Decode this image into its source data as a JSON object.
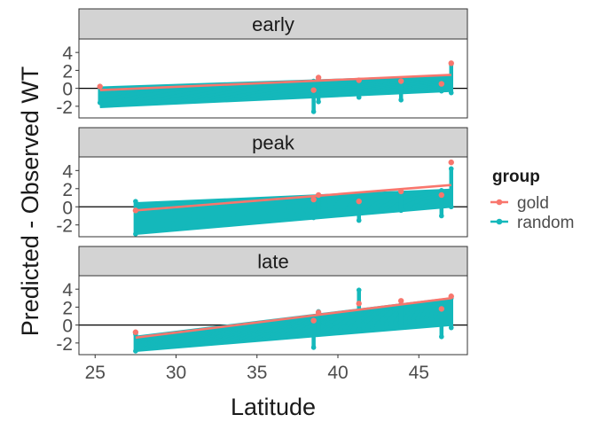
{
  "chart_data": {
    "type": "line",
    "ylabel": "Predicted - Observed WT",
    "xlabel": "Latitude",
    "x_ticks": [
      25,
      30,
      35,
      40,
      45
    ],
    "xlim": [
      24.0,
      48.0
    ],
    "legend": {
      "title": "group",
      "position": "right",
      "entries": [
        {
          "name": "gold",
          "color": "#F8766D"
        },
        {
          "name": "random",
          "color": "#14B8BB"
        }
      ]
    },
    "colors": {
      "gold": "#F8766D",
      "random": "#14B8BB",
      "strip": "#D3D3D3",
      "zero_line": "#000000"
    },
    "panels": [
      {
        "label": "early",
        "ylim": [
          -3.3,
          5.5
        ],
        "y_ticks": [
          -2,
          0,
          2,
          4
        ],
        "y_tick_labels": [
          "-2",
          "0",
          "2",
          "4"
        ],
        "gold_line": {
          "x": [
            25.3,
            47.0
          ],
          "y": [
            -0.2,
            1.5
          ]
        },
        "random_lines": {
          "x_start": 25.3,
          "x_end": 47.0,
          "y_start_range": [
            -2.1,
            0.1
          ],
          "y_end_range": [
            -0.3,
            1.4
          ],
          "count": 28
        },
        "random_points": [
          {
            "x": 25.3,
            "ymin": -1.6,
            "ymax": 0.2
          },
          {
            "x": 38.5,
            "ymin": -2.6,
            "ymax": 0.8
          },
          {
            "x": 38.8,
            "ymin": -1.5,
            "ymax": 1.0
          },
          {
            "x": 41.3,
            "ymin": -1.0,
            "ymax": 0.7
          },
          {
            "x": 43.9,
            "ymin": -1.3,
            "ymax": 0.8
          },
          {
            "x": 46.4,
            "ymin": -0.3,
            "ymax": 1.1
          },
          {
            "x": 47.0,
            "ymin": -0.5,
            "ymax": 2.7
          }
        ],
        "gold_points": [
          {
            "x": 25.3,
            "y": 0.2
          },
          {
            "x": 38.5,
            "y": -0.2
          },
          {
            "x": 38.8,
            "y": 1.2
          },
          {
            "x": 41.3,
            "y": 0.9
          },
          {
            "x": 43.9,
            "y": 0.8
          },
          {
            "x": 46.4,
            "y": 0.5
          },
          {
            "x": 47.0,
            "y": 2.8
          }
        ]
      },
      {
        "label": "peak",
        "ylim": [
          -3.3,
          5.5
        ],
        "y_ticks": [
          -2,
          0,
          2,
          4
        ],
        "y_tick_labels": [
          "-2",
          "0",
          "2",
          "4"
        ],
        "gold_line": {
          "x": [
            27.5,
            47.0
          ],
          "y": [
            -0.4,
            2.4
          ]
        },
        "random_lines": {
          "x_start": 27.5,
          "x_end": 47.0,
          "y_start_range": [
            -3.0,
            0.4
          ],
          "y_end_range": [
            0.0,
            1.9
          ],
          "count": 26
        },
        "random_points": [
          {
            "x": 27.5,
            "ymin": -3.0,
            "ymax": 0.6
          },
          {
            "x": 38.5,
            "ymin": -1.2,
            "ymax": 1.0
          },
          {
            "x": 38.8,
            "ymin": -0.5,
            "ymax": 1.2
          },
          {
            "x": 41.3,
            "ymin": -1.5,
            "ymax": 1.0
          },
          {
            "x": 43.9,
            "ymin": -0.4,
            "ymax": 1.4
          },
          {
            "x": 46.4,
            "ymin": -1.0,
            "ymax": 1.8
          },
          {
            "x": 47.0,
            "ymin": 0.0,
            "ymax": 4.2
          }
        ],
        "gold_points": [
          {
            "x": 27.5,
            "y": -0.4
          },
          {
            "x": 38.5,
            "y": 0.8
          },
          {
            "x": 38.8,
            "y": 1.3
          },
          {
            "x": 41.3,
            "y": 0.6
          },
          {
            "x": 43.9,
            "y": 1.7
          },
          {
            "x": 46.4,
            "y": 1.3
          },
          {
            "x": 47.0,
            "y": 4.9
          }
        ]
      },
      {
        "label": "late",
        "ylim": [
          -3.3,
          5.5
        ],
        "y_ticks": [
          -2,
          0,
          2,
          4
        ],
        "y_tick_labels": [
          "-2",
          "0",
          "2",
          "4"
        ],
        "gold_line": {
          "x": [
            27.5,
            47.0
          ],
          "y": [
            -1.4,
            3.0
          ]
        },
        "random_lines": {
          "x_start": 27.5,
          "x_end": 47.0,
          "y_start_range": [
            -2.9,
            -1.3
          ],
          "y_end_range": [
            0.0,
            3.0
          ],
          "count": 30
        },
        "random_points": [
          {
            "x": 27.5,
            "ymin": -2.9,
            "ymax": -1.0
          },
          {
            "x": 38.5,
            "ymin": -2.5,
            "ymax": 0.9
          },
          {
            "x": 38.8,
            "ymin": -0.8,
            "ymax": 1.5
          },
          {
            "x": 41.3,
            "ymin": -0.5,
            "ymax": 3.9
          },
          {
            "x": 43.9,
            "ymin": -0.2,
            "ymax": 2.3
          },
          {
            "x": 46.4,
            "ymin": -1.3,
            "ymax": 2.0
          },
          {
            "x": 47.0,
            "ymin": -0.3,
            "ymax": 3.0
          }
        ],
        "gold_points": [
          {
            "x": 27.5,
            "y": -0.8
          },
          {
            "x": 38.5,
            "y": 0.5
          },
          {
            "x": 38.8,
            "y": 1.4
          },
          {
            "x": 41.3,
            "y": 2.4
          },
          {
            "x": 43.9,
            "y": 2.7
          },
          {
            "x": 46.4,
            "y": 1.8
          },
          {
            "x": 47.0,
            "y": 3.2
          }
        ]
      }
    ]
  }
}
